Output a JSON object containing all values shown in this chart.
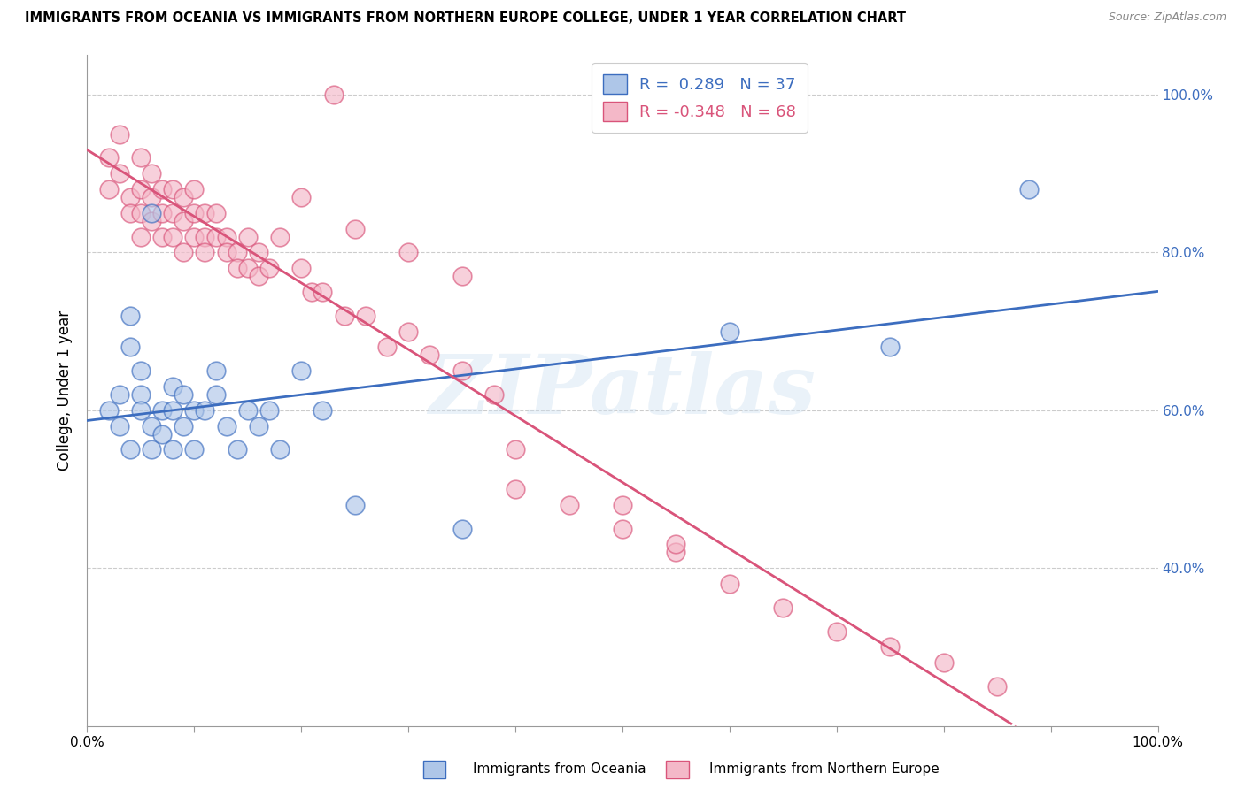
{
  "title": "IMMIGRANTS FROM OCEANIA VS IMMIGRANTS FROM NORTHERN EUROPE COLLEGE, UNDER 1 YEAR CORRELATION CHART",
  "source": "Source: ZipAtlas.com",
  "ylabel": "College, Under 1 year",
  "xlim": [
    0.0,
    1.0
  ],
  "ylim": [
    0.2,
    1.05
  ],
  "blue_R": 0.289,
  "blue_N": 37,
  "pink_R": -0.348,
  "pink_N": 68,
  "blue_color": "#aec6e8",
  "pink_color": "#f4b8c8",
  "blue_line_color": "#3c6dbf",
  "pink_line_color": "#d9547a",
  "ytick_positions": [
    1.0,
    0.8,
    0.6,
    0.4
  ],
  "ytick_labels": [
    "100.0%",
    "80.0%",
    "60.0%",
    "40.0%"
  ],
  "blue_scatter_x": [
    0.02,
    0.03,
    0.03,
    0.04,
    0.04,
    0.04,
    0.05,
    0.05,
    0.05,
    0.06,
    0.06,
    0.06,
    0.07,
    0.07,
    0.08,
    0.08,
    0.08,
    0.09,
    0.09,
    0.1,
    0.1,
    0.11,
    0.12,
    0.12,
    0.13,
    0.14,
    0.15,
    0.16,
    0.17,
    0.18,
    0.2,
    0.22,
    0.25,
    0.35,
    0.6,
    0.75,
    0.88
  ],
  "blue_scatter_y": [
    0.6,
    0.62,
    0.58,
    0.68,
    0.72,
    0.55,
    0.65,
    0.62,
    0.6,
    0.55,
    0.58,
    0.85,
    0.6,
    0.57,
    0.55,
    0.6,
    0.63,
    0.58,
    0.62,
    0.55,
    0.6,
    0.6,
    0.65,
    0.62,
    0.58,
    0.55,
    0.6,
    0.58,
    0.6,
    0.55,
    0.65,
    0.6,
    0.48,
    0.45,
    0.7,
    0.68,
    0.88
  ],
  "pink_scatter_x": [
    0.02,
    0.02,
    0.03,
    0.03,
    0.04,
    0.04,
    0.05,
    0.05,
    0.05,
    0.05,
    0.06,
    0.06,
    0.06,
    0.07,
    0.07,
    0.07,
    0.08,
    0.08,
    0.08,
    0.09,
    0.09,
    0.09,
    0.1,
    0.1,
    0.1,
    0.11,
    0.11,
    0.11,
    0.12,
    0.12,
    0.13,
    0.13,
    0.14,
    0.14,
    0.15,
    0.15,
    0.16,
    0.16,
    0.17,
    0.18,
    0.2,
    0.21,
    0.22,
    0.24,
    0.26,
    0.28,
    0.3,
    0.32,
    0.35,
    0.38,
    0.4,
    0.45,
    0.5,
    0.55,
    0.6,
    0.65,
    0.7,
    0.75,
    0.8,
    0.85,
    0.4,
    0.2,
    0.25,
    0.3,
    0.35,
    0.5,
    0.55,
    0.23
  ],
  "pink_scatter_y": [
    0.92,
    0.88,
    0.95,
    0.9,
    0.87,
    0.85,
    0.92,
    0.88,
    0.85,
    0.82,
    0.9,
    0.87,
    0.84,
    0.88,
    0.85,
    0.82,
    0.88,
    0.85,
    0.82,
    0.87,
    0.84,
    0.8,
    0.88,
    0.85,
    0.82,
    0.85,
    0.82,
    0.8,
    0.85,
    0.82,
    0.82,
    0.8,
    0.8,
    0.78,
    0.82,
    0.78,
    0.8,
    0.77,
    0.78,
    0.82,
    0.78,
    0.75,
    0.75,
    0.72,
    0.72,
    0.68,
    0.7,
    0.67,
    0.65,
    0.62,
    0.5,
    0.48,
    0.45,
    0.42,
    0.38,
    0.35,
    0.32,
    0.3,
    0.28,
    0.25,
    0.55,
    0.87,
    0.83,
    0.8,
    0.77,
    0.48,
    0.43,
    1.0
  ]
}
